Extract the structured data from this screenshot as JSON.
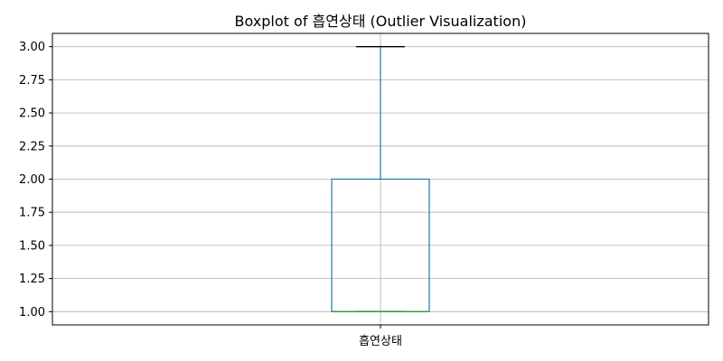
{
  "chart_data": {
    "type": "box",
    "title": "Boxplot of 흡연상태 (Outlier Visualization)",
    "xlabel": "",
    "ylabel": "",
    "categories": [
      "흡연상태"
    ],
    "boxes": [
      {
        "name": "흡연상태",
        "whisker_low": 1.0,
        "q1": 1.0,
        "median": 1.0,
        "q3": 2.0,
        "whisker_high": 3.0,
        "outliers": []
      }
    ],
    "ylim": [
      0.9,
      3.1
    ],
    "yticks": [
      1.0,
      1.25,
      1.5,
      1.75,
      2.0,
      2.25,
      2.5,
      2.75,
      3.0
    ],
    "ytick_labels": [
      "1.00",
      "1.25",
      "1.50",
      "1.75",
      "2.00",
      "2.25",
      "2.50",
      "2.75",
      "3.00"
    ],
    "grid": true,
    "colors": {
      "box": "#1f77b4",
      "whisker": "#1f77b4",
      "cap": "#000000",
      "median": "#2ca02c",
      "grid": "#b0b0b0",
      "frame": "#000000"
    }
  }
}
